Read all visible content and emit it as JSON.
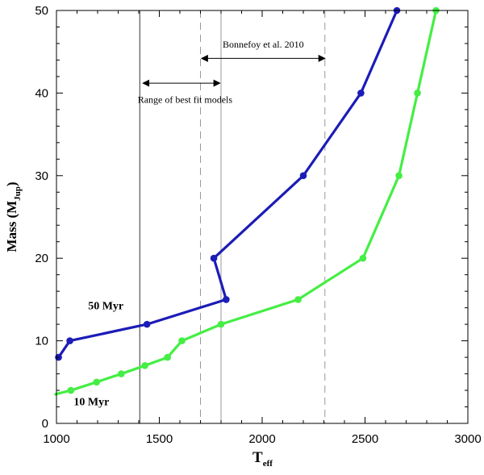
{
  "chart_data": {
    "type": "line",
    "xlabel_main": "T",
    "xlabel_sub": "eff",
    "ylabel_main": "Mass (M",
    "ylabel_sub": "Jup",
    "ylabel_end": ")",
    "xlim": [
      1000,
      3000
    ],
    "ylim": [
      0,
      50
    ],
    "x_ticks": [
      1000,
      1500,
      2000,
      2500,
      3000
    ],
    "y_ticks": [
      0,
      10,
      20,
      30,
      40,
      50
    ],
    "grid": false,
    "series": [
      {
        "name": "50 Myr",
        "color": "#1c1cb8",
        "x": [
          1010,
          1065,
          1440,
          1825,
          1765,
          2200,
          2480,
          2655
        ],
        "y": [
          8,
          10,
          12,
          15,
          20,
          30,
          40,
          50
        ]
      },
      {
        "name": "10 Myr",
        "color": "#44ee44",
        "x": [
          1070,
          1195,
          1315,
          1430,
          1540,
          1610,
          1800,
          2175,
          2490,
          2665,
          2755,
          2845
        ],
        "y": [
          4,
          5,
          6,
          7,
          8,
          10,
          12,
          15,
          20,
          30,
          40,
          50
        ],
        "line_start": [
          990,
          3.5
        ]
      }
    ],
    "vertical_lines": [
      {
        "x": 1405,
        "style": "solid",
        "color": "#333333"
      },
      {
        "x": 1700,
        "style": "dashed",
        "color": "#999999"
      },
      {
        "x": 1800,
        "style": "solid",
        "color": "#999999"
      },
      {
        "x": 2305,
        "style": "dashed",
        "color": "#999999"
      }
    ],
    "annotations": [
      {
        "text": "Bonnefoy et al. 2010",
        "arrow_from": 1705,
        "arrow_to": 2305,
        "arrow_y": 44.2,
        "text_x": 2005,
        "text_y": 45.5
      },
      {
        "text": "Range of best fit models",
        "arrow_from": 1420,
        "arrow_to": 1795,
        "arrow_y": 41.2,
        "text_x": 1625,
        "text_y": 38.8
      }
    ],
    "series_labels": [
      {
        "text": "50 Myr",
        "x": 1240,
        "y": 13.8
      },
      {
        "text": "10 Myr",
        "x": 1170,
        "y": 2.2
      }
    ]
  }
}
